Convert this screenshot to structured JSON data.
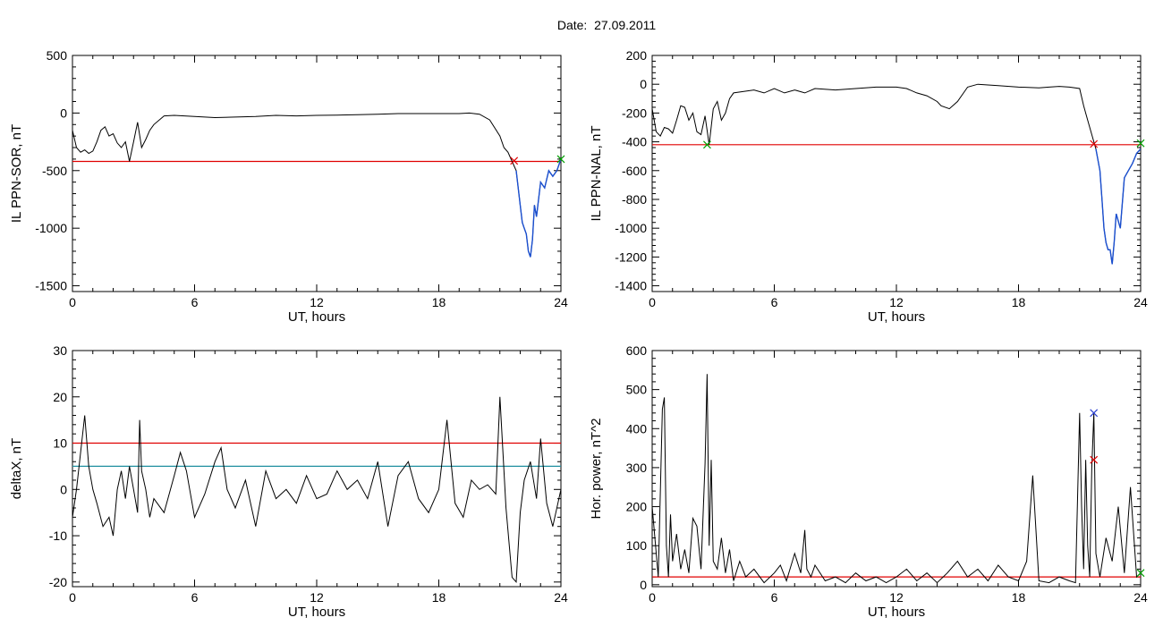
{
  "figure": {
    "title_label": "Date:",
    "title_value": "27.09.2011"
  },
  "colors": {
    "data_line": "#000000",
    "threshold_red": "#e00000",
    "threshold_teal": "#1f8f9f",
    "event_segment_blue": "#1a4fd0",
    "marker_green": "#00a000",
    "marker_blue": "#2a3fd0",
    "marker_red": "#e00000"
  },
  "chart_data": [
    {
      "id": "il-sor",
      "type": "line",
      "ylabel": "IL PPN-SOR, nT",
      "xlabel": "UT, hours",
      "xlim": [
        0,
        24
      ],
      "ylim": [
        -1550,
        500
      ],
      "xticks": [
        0,
        6,
        12,
        18,
        24
      ],
      "yticks": [
        -1500,
        -1000,
        -500,
        0,
        500
      ],
      "threshold_lines": [
        {
          "y": -420,
          "color": "red"
        }
      ],
      "markers": [
        {
          "x": 21.7,
          "y": -415,
          "color": "red",
          "symbol": "x"
        },
        {
          "x": 24.0,
          "y": -400,
          "color": "green",
          "symbol": "x"
        }
      ],
      "highlight_segment": {
        "from": 21.8,
        "to": 24.0,
        "color": "blue"
      },
      "series": [
        {
          "x": [
            0,
            0.2,
            0.4,
            0.6,
            0.8,
            1.0,
            1.2,
            1.4,
            1.6,
            1.8,
            2.0,
            2.2,
            2.4,
            2.6,
            2.8,
            3.0,
            3.2,
            3.4,
            3.6,
            3.8,
            4.0,
            4.5,
            5,
            6,
            7,
            8,
            9,
            10,
            11,
            12,
            13,
            14,
            15,
            16,
            17,
            18,
            19,
            19.5,
            20,
            20.5,
            21,
            21.2,
            21.4,
            21.6,
            21.8,
            22.0,
            22.1,
            22.2,
            22.3,
            22.4,
            22.5,
            22.6,
            22.7,
            22.8,
            23.0,
            23.2,
            23.4,
            23.6,
            23.8,
            24.0
          ],
          "y": [
            -150,
            -300,
            -340,
            -320,
            -350,
            -330,
            -250,
            -150,
            -120,
            -200,
            -180,
            -260,
            -300,
            -250,
            -420,
            -250,
            -80,
            -300,
            -230,
            -150,
            -100,
            -25,
            -20,
            -30,
            -40,
            -35,
            -30,
            -20,
            -25,
            -20,
            -18,
            -15,
            -10,
            -5,
            -5,
            -5,
            -5,
            0,
            -10,
            -60,
            -200,
            -300,
            -340,
            -420,
            -500,
            -800,
            -950,
            -1000,
            -1050,
            -1200,
            -1250,
            -1100,
            -800,
            -900,
            -600,
            -650,
            -500,
            -550,
            -500,
            -400
          ]
        }
      ]
    },
    {
      "id": "il-nal",
      "type": "line",
      "ylabel": "IL PPN-NAL, nT",
      "xlabel": "UT, hours",
      "xlim": [
        0,
        24
      ],
      "ylim": [
        -1440,
        200
      ],
      "xticks": [
        0,
        6,
        12,
        18,
        24
      ],
      "yticks": [
        -1400,
        -1200,
        -1000,
        -800,
        -600,
        -400,
        -200,
        0,
        200
      ],
      "threshold_lines": [
        {
          "y": -420,
          "color": "red"
        }
      ],
      "markers": [
        {
          "x": 2.7,
          "y": -420,
          "color": "green",
          "symbol": "x"
        },
        {
          "x": 21.7,
          "y": -415,
          "color": "red",
          "symbol": "x"
        },
        {
          "x": 24.0,
          "y": -410,
          "color": "green",
          "symbol": "x"
        }
      ],
      "highlight_segment": {
        "from": 21.8,
        "to": 24.0,
        "color": "blue"
      },
      "series": [
        {
          "x": [
            0,
            0.2,
            0.4,
            0.6,
            0.8,
            1.0,
            1.2,
            1.4,
            1.6,
            1.8,
            2.0,
            2.2,
            2.4,
            2.6,
            2.8,
            3.0,
            3.2,
            3.4,
            3.6,
            3.8,
            4.0,
            4.5,
            5,
            5.5,
            6,
            6.5,
            7,
            7.5,
            8,
            9,
            10,
            11,
            12,
            12.5,
            13,
            13.5,
            14,
            14.2,
            14.6,
            15,
            15.5,
            16,
            17,
            18,
            19,
            19.5,
            20,
            20.5,
            21,
            21.2,
            21.4,
            21.6,
            21.8,
            22.0,
            22.1,
            22.2,
            22.3,
            22.4,
            22.5,
            22.6,
            22.7,
            22.8,
            23.0,
            23.2,
            23.4,
            23.6,
            23.8,
            24.0
          ],
          "y": [
            -170,
            -330,
            -360,
            -300,
            -310,
            -340,
            -250,
            -150,
            -160,
            -250,
            -200,
            -330,
            -350,
            -220,
            -420,
            -170,
            -120,
            -250,
            -200,
            -100,
            -60,
            -50,
            -40,
            -60,
            -30,
            -60,
            -40,
            -60,
            -30,
            -40,
            -30,
            -20,
            -20,
            -30,
            -60,
            -80,
            -120,
            -150,
            -170,
            -120,
            -20,
            0,
            -10,
            -20,
            -25,
            -20,
            -15,
            -20,
            -30,
            -150,
            -250,
            -350,
            -450,
            -600,
            -800,
            -1000,
            -1100,
            -1150,
            -1150,
            -1250,
            -1100,
            -900,
            -1000,
            -650,
            -600,
            -550,
            -480,
            -450
          ]
        }
      ]
    },
    {
      "id": "deltax",
      "type": "line",
      "ylabel": "deltaX, nT",
      "xlabel": "UT, hours",
      "xlim": [
        0,
        24
      ],
      "ylim": [
        -21,
        30
      ],
      "xticks": [
        0,
        6,
        12,
        18,
        24
      ],
      "yticks": [
        -20,
        -10,
        0,
        10,
        20,
        30
      ],
      "threshold_lines": [
        {
          "y": 10,
          "color": "red"
        },
        {
          "y": 5,
          "color": "teal"
        }
      ],
      "markers": [],
      "series": [
        {
          "x": [
            0,
            0.2,
            0.4,
            0.6,
            0.8,
            1.0,
            1.2,
            1.5,
            1.8,
            2.0,
            2.2,
            2.4,
            2.6,
            2.8,
            3.0,
            3.2,
            3.3,
            3.4,
            3.6,
            3.8,
            4.0,
            4.5,
            5.0,
            5.3,
            5.6,
            6.0,
            6.5,
            7.0,
            7.3,
            7.6,
            8.0,
            8.5,
            9.0,
            9.5,
            10.0,
            10.5,
            11.0,
            11.5,
            12.0,
            12.5,
            13.0,
            13.5,
            14.0,
            14.5,
            15.0,
            15.5,
            16.0,
            16.5,
            17.0,
            17.5,
            18.0,
            18.4,
            18.8,
            19.2,
            19.6,
            20.0,
            20.4,
            20.8,
            21.0,
            21.3,
            21.6,
            21.8,
            22.0,
            22.2,
            22.5,
            22.8,
            23.0,
            23.3,
            23.6,
            24.0
          ],
          "y": [
            -6,
            0,
            8,
            16,
            5,
            0,
            -3,
            -8,
            -6,
            -10,
            0,
            4,
            -2,
            5,
            0,
            -5,
            15,
            4,
            0,
            -6,
            -2,
            -5,
            3,
            8,
            4,
            -6,
            -1,
            6,
            9,
            0,
            -4,
            2,
            -8,
            4,
            -2,
            0,
            -3,
            3,
            -2,
            -1,
            4,
            0,
            2,
            -2,
            6,
            -8,
            3,
            6,
            -2,
            -5,
            0,
            15,
            -3,
            -6,
            2,
            0,
            1,
            -1,
            20,
            -4,
            -19,
            -20,
            -5,
            2,
            6,
            -2,
            11,
            -3,
            -8,
            0
          ]
        }
      ]
    },
    {
      "id": "hor-power",
      "type": "line",
      "ylabel": "Hor. power, nT^2",
      "xlabel": "UT, hours",
      "xlim": [
        0,
        24
      ],
      "ylim": [
        -5,
        600
      ],
      "xticks": [
        0,
        6,
        12,
        18,
        24
      ],
      "yticks": [
        0,
        100,
        200,
        300,
        400,
        500,
        600
      ],
      "threshold_lines": [
        {
          "y": 20,
          "color": "red"
        }
      ],
      "markers": [
        {
          "x": 21.7,
          "y": 440,
          "color": "blue",
          "symbol": "x"
        },
        {
          "x": 21.7,
          "y": 320,
          "color": "red",
          "symbol": "x"
        },
        {
          "x": 24.0,
          "y": 30,
          "color": "green",
          "symbol": "x"
        }
      ],
      "series": [
        {
          "x": [
            0,
            0.3,
            0.5,
            0.6,
            0.7,
            0.8,
            0.9,
            1.0,
            1.2,
            1.4,
            1.6,
            1.8,
            2.0,
            2.2,
            2.4,
            2.6,
            2.7,
            2.8,
            2.9,
            3.0,
            3.2,
            3.4,
            3.6,
            3.8,
            4.0,
            4.3,
            4.6,
            5.0,
            5.5,
            6.0,
            6.3,
            6.6,
            7.0,
            7.3,
            7.5,
            7.6,
            7.8,
            8.0,
            8.5,
            9.0,
            9.5,
            10.0,
            10.5,
            11.0,
            11.5,
            12.0,
            12.5,
            13.0,
            13.5,
            14.0,
            14.5,
            15.0,
            15.5,
            16.0,
            16.5,
            17.0,
            17.5,
            18.0,
            18.4,
            18.7,
            19.0,
            19.5,
            20.0,
            20.5,
            20.8,
            21.0,
            21.1,
            21.2,
            21.3,
            21.4,
            21.5,
            21.6,
            21.7,
            21.8,
            22.0,
            22.3,
            22.6,
            22.9,
            23.2,
            23.5,
            23.8,
            24.0
          ],
          "y": [
            200,
            20,
            450,
            480,
            100,
            20,
            180,
            60,
            130,
            40,
            90,
            30,
            170,
            150,
            40,
            310,
            540,
            100,
            320,
            60,
            40,
            120,
            30,
            90,
            10,
            60,
            20,
            40,
            5,
            30,
            50,
            10,
            80,
            30,
            140,
            40,
            20,
            50,
            10,
            20,
            5,
            30,
            10,
            20,
            5,
            20,
            40,
            10,
            30,
            5,
            30,
            60,
            20,
            40,
            10,
            50,
            20,
            10,
            60,
            280,
            10,
            5,
            20,
            10,
            5,
            440,
            200,
            40,
            320,
            100,
            20,
            300,
            440,
            80,
            20,
            120,
            60,
            200,
            30,
            250,
            20,
            30
          ]
        }
      ]
    }
  ]
}
